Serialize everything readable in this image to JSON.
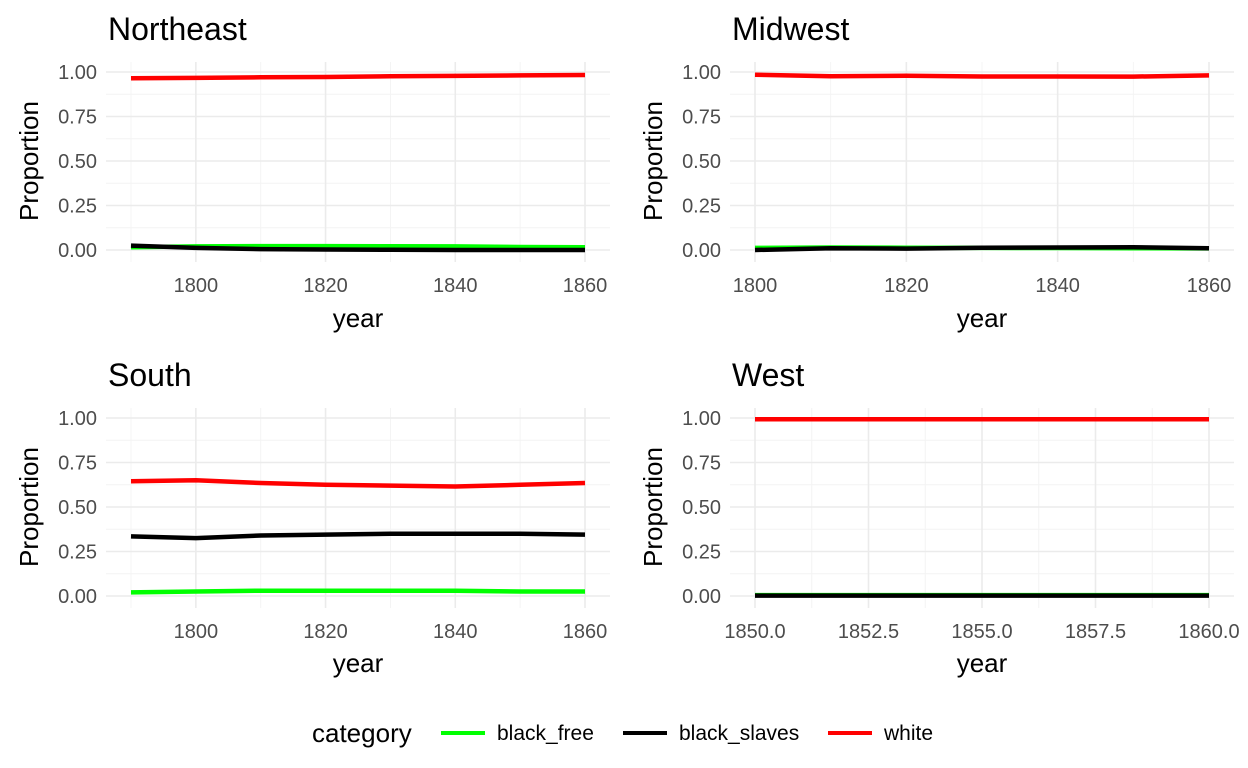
{
  "chart_data": [
    {
      "type": "line",
      "title": "Northeast",
      "xlabel": "year",
      "ylabel": "Proportion",
      "xlim": [
        1790,
        1860
      ],
      "ylim": [
        0,
        1
      ],
      "x_ticks": [
        1800,
        1820,
        1840,
        1860
      ],
      "x_tick_labels": [
        "1800",
        "1820",
        "1840",
        "1860"
      ],
      "y_ticks": [
        0,
        0.25,
        0.5,
        0.75,
        1
      ],
      "y_tick_labels": [
        "0.00",
        "0.25",
        "0.50",
        "0.75",
        "1.00"
      ],
      "x": [
        1790,
        1800,
        1810,
        1820,
        1830,
        1840,
        1850,
        1860
      ],
      "series": [
        {
          "name": "black_free",
          "values": [
            0.015,
            0.02,
            0.022,
            0.022,
            0.021,
            0.02,
            0.017,
            0.015
          ]
        },
        {
          "name": "black_slaves",
          "values": [
            0.025,
            0.012,
            0.005,
            0.003,
            0.001,
            0.0,
            0.0,
            0.0
          ]
        },
        {
          "name": "white",
          "values": [
            0.965,
            0.967,
            0.97,
            0.972,
            0.976,
            0.978,
            0.981,
            0.983
          ]
        }
      ]
    },
    {
      "type": "line",
      "title": "Midwest",
      "xlabel": "year",
      "ylabel": "Proportion",
      "xlim": [
        1800,
        1860
      ],
      "ylim": [
        0,
        1
      ],
      "x_ticks": [
        1800,
        1820,
        1840,
        1860
      ],
      "x_tick_labels": [
        "1800",
        "1820",
        "1840",
        "1860"
      ],
      "y_ticks": [
        0,
        0.25,
        0.5,
        0.75,
        1
      ],
      "y_tick_labels": [
        "0.00",
        "0.25",
        "0.50",
        "0.75",
        "1.00"
      ],
      "x": [
        1800,
        1810,
        1820,
        1830,
        1840,
        1850,
        1860
      ],
      "series": [
        {
          "name": "black_free",
          "values": [
            0.012,
            0.014,
            0.013,
            0.012,
            0.011,
            0.01,
            0.009
          ]
        },
        {
          "name": "black_slaves",
          "values": [
            0.0,
            0.01,
            0.008,
            0.013,
            0.014,
            0.016,
            0.01
          ]
        },
        {
          "name": "white",
          "values": [
            0.985,
            0.976,
            0.979,
            0.975,
            0.975,
            0.974,
            0.981
          ]
        }
      ]
    },
    {
      "type": "line",
      "title": "South",
      "xlabel": "year",
      "ylabel": "Proportion",
      "xlim": [
        1790,
        1860
      ],
      "ylim": [
        0,
        1
      ],
      "x_ticks": [
        1800,
        1820,
        1840,
        1860
      ],
      "x_tick_labels": [
        "1800",
        "1820",
        "1840",
        "1860"
      ],
      "y_ticks": [
        0,
        0.25,
        0.5,
        0.75,
        1
      ],
      "y_tick_labels": [
        "0.00",
        "0.25",
        "0.50",
        "0.75",
        "1.00"
      ],
      "x": [
        1790,
        1800,
        1810,
        1820,
        1830,
        1840,
        1850,
        1860
      ],
      "series": [
        {
          "name": "black_free",
          "values": [
            0.02,
            0.025,
            0.03,
            0.03,
            0.03,
            0.03,
            0.025,
            0.025
          ]
        },
        {
          "name": "black_slaves",
          "values": [
            0.335,
            0.325,
            0.34,
            0.345,
            0.35,
            0.35,
            0.35,
            0.345
          ]
        },
        {
          "name": "white",
          "values": [
            0.645,
            0.65,
            0.635,
            0.625,
            0.62,
            0.615,
            0.625,
            0.635
          ]
        }
      ]
    },
    {
      "type": "line",
      "title": "West",
      "xlabel": "year",
      "ylabel": "Proportion",
      "xlim": [
        1850,
        1860
      ],
      "ylim": [
        0,
        1
      ],
      "x_ticks": [
        1850,
        1852.5,
        1855,
        1857.5,
        1860
      ],
      "x_tick_labels": [
        "1850.0",
        "1852.5",
        "1855.0",
        "1857.5",
        "1860.0"
      ],
      "y_ticks": [
        0,
        0.25,
        0.5,
        0.75,
        1
      ],
      "y_tick_labels": [
        "0.00",
        "0.25",
        "0.50",
        "0.75",
        "1.00"
      ],
      "x": [
        1850,
        1860
      ],
      "series": [
        {
          "name": "black_free",
          "values": [
            0.005,
            0.005
          ]
        },
        {
          "name": "black_slaves",
          "values": [
            0.002,
            0.002
          ]
        },
        {
          "name": "white",
          "values": [
            0.993,
            0.993
          ]
        }
      ]
    }
  ],
  "legend": {
    "title": "category",
    "items": [
      {
        "label": "black_free",
        "color": "#00ff00"
      },
      {
        "label": "black_slaves",
        "color": "#000000"
      },
      {
        "label": "white",
        "color": "#ff0000"
      }
    ]
  },
  "colors": {
    "black_free": "#00ff00",
    "black_slaves": "#000000",
    "white": "#ff0000"
  }
}
